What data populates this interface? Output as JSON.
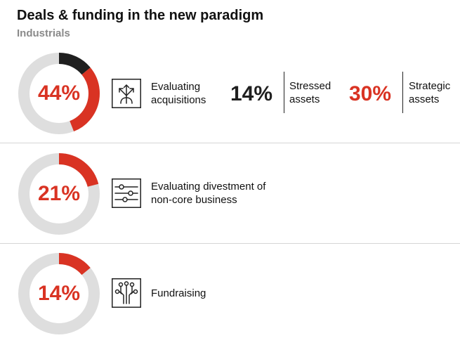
{
  "title": "Deals & funding in the new paradigm",
  "subtitle": "Industrials",
  "colors": {
    "accent": "#d93323",
    "dark": "#1f1f1f",
    "track": "#dedede",
    "subtitle": "#8a8a8a"
  },
  "rows": [
    {
      "percent_label": "44%",
      "label": "Evaluating\nacquisitions",
      "icon": "branching-arrows-icon",
      "stats": [
        {
          "value": "14%",
          "label": "Stressed\nassets"
        },
        {
          "value": "30%",
          "label": "Strategic\nassets"
        }
      ]
    },
    {
      "percent_label": "21%",
      "label": "Evaluating divestment of\nnon-core business",
      "icon": "sliders-icon"
    },
    {
      "percent_label": "14%",
      "label": "Fundraising",
      "icon": "circuit-icon"
    }
  ],
  "chart_data": [
    {
      "type": "pie",
      "variant": "donut",
      "value_label": "44%",
      "label": "Evaluating acquisitions",
      "segments": [
        {
          "name": "Stressed assets",
          "value": 14,
          "color": "#1f1f1f"
        },
        {
          "name": "Strategic assets",
          "value": 30,
          "color": "#d93323"
        }
      ],
      "total": 44,
      "max": 100
    },
    {
      "type": "pie",
      "variant": "donut",
      "value_label": "21%",
      "label": "Evaluating divestment of non-core business",
      "segments": [
        {
          "value": 21,
          "color": "#d93323"
        }
      ],
      "total": 21,
      "max": 100
    },
    {
      "type": "pie",
      "variant": "donut",
      "value_label": "14%",
      "label": "Fundraising",
      "segments": [
        {
          "value": 14,
          "color": "#d93323"
        }
      ],
      "total": 14,
      "max": 100
    }
  ]
}
